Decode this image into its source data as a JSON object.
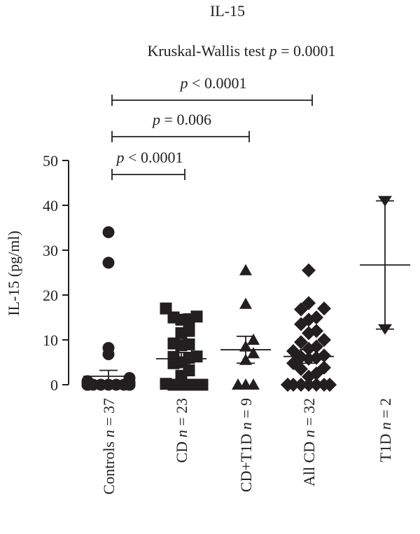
{
  "chart_data": {
    "type": "scatter",
    "title": "IL-15",
    "subtitle": {
      "prefix": "Kruskal-Wallis test ",
      "p_symbol": "p",
      "value": " = 0.0001"
    },
    "ylabel": "IL-15 (pg/ml)",
    "ylim": [
      0,
      50
    ],
    "yticks": [
      "0",
      "10",
      "20",
      "30",
      "40",
      "50"
    ],
    "grid": false,
    "groups": [
      {
        "label": "Controls",
        "n_text": " = 37",
        "marker": "circle",
        "values": [
          0,
          0,
          0,
          0,
          0,
          0,
          0,
          0,
          0,
          0,
          0,
          0,
          0,
          0,
          0,
          0,
          0,
          0,
          0,
          0,
          0,
          0,
          0,
          0,
          0,
          0,
          0,
          0,
          0.3,
          0.6,
          0.8,
          1.5,
          6.8,
          8.2,
          27.2,
          34.0,
          0
        ],
        "mean": 1.9,
        "sem_low": 0.8,
        "sem_high": 3.2
      },
      {
        "label": "CD",
        "n_text": " = 23",
        "marker": "square",
        "values": [
          0,
          0,
          0,
          0,
          0.2,
          2.0,
          3.2,
          4.8,
          5.0,
          6.0,
          6.2,
          6.3,
          8.8,
          9.0,
          9.2,
          11.5,
          12.0,
          14.5,
          14.6,
          15.0,
          15.2,
          17.0,
          0
        ],
        "mean": 5.8,
        "sem_low": 4.5,
        "sem_high": 7.2
      },
      {
        "label": "CD+T1D",
        "n_text": " = 9",
        "marker": "triangle-up",
        "values": [
          0,
          0,
          0,
          5.5,
          7.0,
          8.5,
          10.0,
          18.0,
          25.5
        ],
        "mean": 7.8,
        "sem_low": 4.8,
        "sem_high": 10.8
      },
      {
        "label": "All CD",
        "n_text": " = 32",
        "marker": "diamond",
        "values": [
          0,
          0,
          0,
          0,
          0,
          0,
          0,
          0,
          1.8,
          2.5,
          3.5,
          3.8,
          4.8,
          5.8,
          6.0,
          6.2,
          6.5,
          7.5,
          8.0,
          8.5,
          9.5,
          10.0,
          11.5,
          12.0,
          13.5,
          14.5,
          15.0,
          16.8,
          17.0,
          18.2,
          25.5,
          0
        ],
        "mean": 6.3,
        "sem_low": 4.8,
        "sem_high": 7.8
      },
      {
        "label": "T1D",
        "n_text": " = 2",
        "marker": "triangle-down",
        "values": [
          41.0,
          12.4
        ],
        "mean": 26.7,
        "sem_low": 12.4,
        "sem_high": 41.0
      }
    ],
    "comparisons": [
      {
        "from": 0,
        "to": 1,
        "p_symbol": "p",
        "text": " < 0.0001"
      },
      {
        "from": 0,
        "to": 2,
        "p_symbol": "p",
        "text": " = 0.006"
      },
      {
        "from": 0,
        "to": 3,
        "p_symbol": "p",
        "text": " < 0.0001"
      }
    ],
    "n_symbol": "n"
  }
}
